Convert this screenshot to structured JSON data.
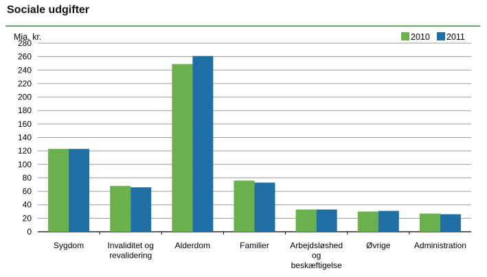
{
  "chart_data": {
    "type": "bar",
    "title": "Sociale udgifter",
    "ylabel": "Mia. kr.",
    "xlabel": "",
    "ylim": [
      0,
      280
    ],
    "yticks": [
      0,
      20,
      40,
      60,
      80,
      100,
      120,
      140,
      160,
      180,
      200,
      220,
      240,
      260,
      280
    ],
    "grid": true,
    "legend_position": "top-right",
    "categories": [
      [
        "Sygdom"
      ],
      [
        "Invaliditet og",
        "revalidering"
      ],
      [
        "Alderdom"
      ],
      [
        "Familier"
      ],
      [
        "Arbejdsløshed",
        "og",
        "beskæftigelse"
      ],
      [
        "Øvrige"
      ],
      [
        "Administration"
      ]
    ],
    "series": [
      {
        "name": "2010",
        "color": "#6ab04c",
        "values": [
          123,
          68,
          249,
          76,
          33,
          30,
          27
        ]
      },
      {
        "name": "2011",
        "color": "#1f6fa5",
        "values": [
          123,
          66,
          261,
          73,
          33,
          31,
          26
        ]
      }
    ],
    "title_rule_color": "#3a8a3a",
    "grid_color": "#9a9a9a"
  }
}
